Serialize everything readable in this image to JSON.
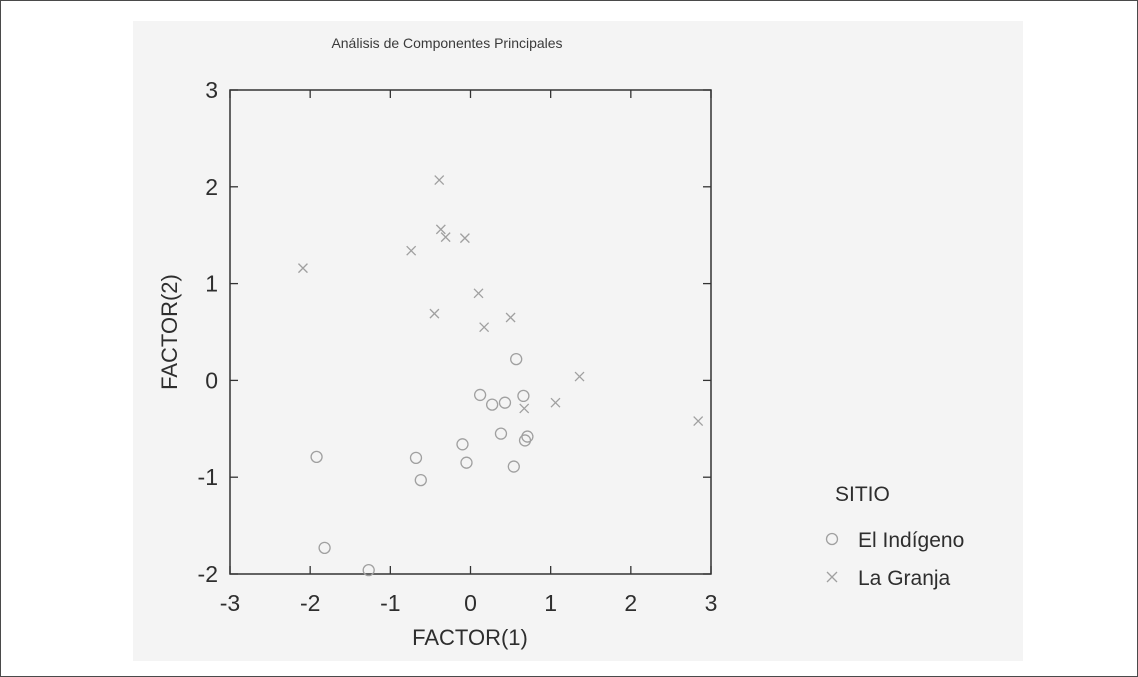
{
  "chart_data": {
    "type": "scatter",
    "title": "Análisis de Componentes Principales",
    "xlabel": "FACTOR(1)",
    "ylabel": "FACTOR(2)",
    "xlim": [
      -3,
      3
    ],
    "ylim": [
      -2,
      3
    ],
    "x_ticks": [
      -3,
      -2,
      -1,
      0,
      1,
      2,
      3
    ],
    "y_ticks": [
      -2,
      -1,
      0,
      1,
      2,
      3
    ],
    "grid": false,
    "legend": {
      "title": "SITIO",
      "position": "bottom-right"
    },
    "series": [
      {
        "name": "El Indígeno",
        "marker": "circle",
        "color": "#a0a0a0",
        "points": [
          [
            0.57,
            0.22
          ],
          [
            0.12,
            -0.15
          ],
          [
            0.27,
            -0.25
          ],
          [
            0.43,
            -0.23
          ],
          [
            0.66,
            -0.16
          ],
          [
            0.38,
            -0.55
          ],
          [
            0.71,
            -0.58
          ],
          [
            0.68,
            -0.62
          ],
          [
            -0.1,
            -0.66
          ],
          [
            -0.05,
            -0.85
          ],
          [
            0.54,
            -0.89
          ],
          [
            -0.68,
            -0.8
          ],
          [
            -0.62,
            -1.03
          ],
          [
            -1.92,
            -0.79
          ],
          [
            -1.82,
            -1.73
          ],
          [
            -1.27,
            -1.96
          ]
        ]
      },
      {
        "name": "La Granja",
        "marker": "cross",
        "color": "#a0a0a0",
        "points": [
          [
            -0.39,
            2.07
          ],
          [
            -0.37,
            1.56
          ],
          [
            -0.31,
            1.48
          ],
          [
            -0.07,
            1.47
          ],
          [
            -0.74,
            1.34
          ],
          [
            -2.09,
            1.16
          ],
          [
            0.1,
            0.9
          ],
          [
            -0.45,
            0.69
          ],
          [
            0.5,
            0.65
          ],
          [
            0.17,
            0.55
          ],
          [
            1.36,
            0.04
          ],
          [
            0.67,
            -0.29
          ],
          [
            1.06,
            -0.23
          ],
          [
            2.84,
            -0.42
          ]
        ]
      }
    ]
  }
}
